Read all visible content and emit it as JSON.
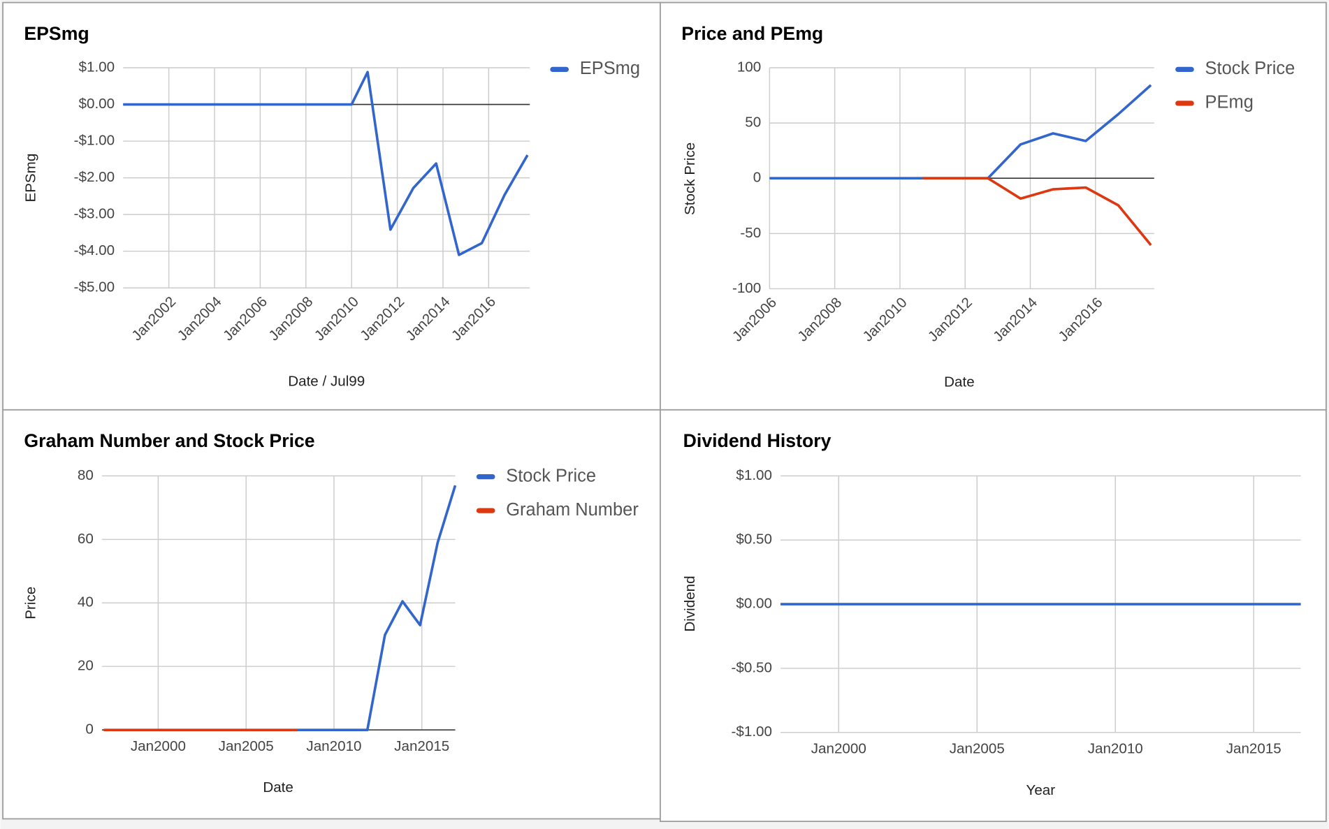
{
  "chart_data": [
    {
      "type": "line",
      "title": "EPSmg",
      "x_label": "Date / Jul99",
      "y_label": "EPSmg",
      "x": [
        2000,
        2001,
        2002,
        2003,
        2004,
        2005,
        2006,
        2007,
        2008,
        2009,
        2010,
        2010.7,
        2011.7,
        2012.7,
        2013.7,
        2014.7,
        2015.7,
        2016.7,
        2017.7
      ],
      "series": [
        {
          "name": "EPSmg",
          "color": "#3366cc",
          "values": [
            0,
            0,
            0,
            0,
            0,
            0,
            0,
            0,
            0,
            0,
            0,
            0.88,
            -3.41,
            -2.28,
            -1.61,
            -4.1,
            -3.78,
            -2.46,
            -1.38
          ]
        }
      ],
      "xlim": [
        2000,
        2017.8
      ],
      "xticks": [
        {
          "value": 2002,
          "label": "Jan2002"
        },
        {
          "value": 2004,
          "label": "Jan2004"
        },
        {
          "value": 2006,
          "label": "Jan2006"
        },
        {
          "value": 2008,
          "label": "Jan2008"
        },
        {
          "value": 2010,
          "label": "Jan2010"
        },
        {
          "value": 2012,
          "label": "Jan2012"
        },
        {
          "value": 2014,
          "label": "Jan2014"
        },
        {
          "value": 2016,
          "label": "Jan2016"
        }
      ],
      "ylim": [
        -5,
        1
      ],
      "yticks": [
        {
          "value": 1,
          "label": "$1.00"
        },
        {
          "value": 0,
          "label": "$0.00"
        },
        {
          "value": -1,
          "label": "-$1.00"
        },
        {
          "value": -2,
          "label": "-$2.00"
        },
        {
          "value": -3,
          "label": "-$3.00"
        },
        {
          "value": -4,
          "label": "-$4.00"
        },
        {
          "value": -5,
          "label": "-$5.00"
        }
      ],
      "grid": true,
      "legend": "right"
    },
    {
      "type": "line",
      "title": "Price and PEmg",
      "x_label": "Date",
      "y_label": "Stock Price",
      "x": [
        2006,
        2006.7,
        2007.7,
        2008.7,
        2009.7,
        2010.7,
        2011.7,
        2012.7,
        2013.7,
        2014.7,
        2015.7,
        2016.7,
        2017.7
      ],
      "series": [
        {
          "name": "Stock Price",
          "color": "#3366cc",
          "values": [
            0,
            0,
            0,
            0,
            0,
            0,
            0,
            0,
            30.6,
            40.6,
            33.7,
            58,
            84.3
          ]
        },
        {
          "name": "PEmg",
          "color": "#dc3912",
          "values": [
            null,
            null,
            null,
            null,
            null,
            0,
            0,
            0,
            -18.4,
            -10,
            -8.4,
            -24.5,
            -60.5
          ]
        }
      ],
      "xlim": [
        2006,
        2017.8
      ],
      "xticks": [
        {
          "value": 2006,
          "label": "Jan2006"
        },
        {
          "value": 2008,
          "label": "Jan2008"
        },
        {
          "value": 2010,
          "label": "Jan2010"
        },
        {
          "value": 2012,
          "label": "Jan2012"
        },
        {
          "value": 2014,
          "label": "Jan2014"
        },
        {
          "value": 2016,
          "label": "Jan2016"
        }
      ],
      "ylim": [
        -100,
        100
      ],
      "yticks": [
        100,
        50,
        0,
        -50,
        -100
      ],
      "grid": true,
      "legend": "right"
    },
    {
      "type": "line",
      "title": "Graham Number and Stock Price",
      "x_label": "Date",
      "y_label": "Price",
      "x": [
        1996.9,
        1997.9,
        1998.9,
        1999.9,
        2000.9,
        2001.9,
        2002.9,
        2003.9,
        2004.9,
        2005.9,
        2006.9,
        2007.9,
        2008.9,
        2009.9,
        2010.9,
        2011.9,
        2012.9,
        2013.9,
        2014.9,
        2015.9,
        2016.9
      ],
      "series": [
        {
          "name": "Stock Price",
          "color": "#3366cc",
          "values": [
            null,
            null,
            null,
            null,
            null,
            null,
            null,
            null,
            null,
            null,
            null,
            0,
            0,
            0,
            0,
            0,
            29.9,
            40.5,
            33,
            59,
            77
          ]
        },
        {
          "name": "Graham Number",
          "color": "#dc3912",
          "values": [
            0,
            0,
            0,
            0,
            0,
            0,
            0,
            0,
            0,
            0,
            0,
            0,
            null,
            null,
            null,
            null,
            null,
            null,
            null,
            null,
            null
          ]
        }
      ],
      "xlim": [
        1996.8,
        2016.9
      ],
      "xticks": [
        {
          "value": 2000,
          "label": "Jan2000"
        },
        {
          "value": 2005,
          "label": "Jan2005"
        },
        {
          "value": 2010,
          "label": "Jan2010"
        },
        {
          "value": 2015,
          "label": "Jan2015"
        }
      ],
      "ylim": [
        0,
        80
      ],
      "yticks": [
        80,
        60,
        40,
        20,
        0
      ],
      "grid": true,
      "legend": "right"
    },
    {
      "type": "line",
      "title": "Dividend History",
      "x_label": "Year",
      "y_label": "Dividend",
      "x": [
        1997.9,
        1998.9,
        1999.9,
        2000.9,
        2001.9,
        2002.9,
        2003.9,
        2004.9,
        2005.9,
        2006.9,
        2007.9,
        2008.9,
        2009.9,
        2010.9,
        2011.9,
        2012.9,
        2013.9,
        2014.9,
        2015.9,
        2016.7
      ],
      "series": [
        {
          "color": "#3366cc",
          "values": [
            0,
            0,
            0,
            0,
            0,
            0,
            0,
            0,
            0,
            0,
            0,
            0,
            0,
            0,
            0,
            0,
            0,
            0,
            0,
            0
          ]
        }
      ],
      "xlim": [
        1997.9,
        2016.7
      ],
      "xticks": [
        {
          "value": 2000,
          "label": "Jan2000"
        },
        {
          "value": 2005,
          "label": "Jan2005"
        },
        {
          "value": 2010,
          "label": "Jan2010"
        },
        {
          "value": 2015,
          "label": "Jan2015"
        }
      ],
      "ylim": [
        -1,
        1
      ],
      "yticks": [
        {
          "value": 1,
          "label": "$1.00"
        },
        {
          "value": 0.5,
          "label": "$0.50"
        },
        {
          "value": 0,
          "label": "$0.00"
        },
        {
          "value": -0.5,
          "label": "-$0.50"
        },
        {
          "value": -1,
          "label": "-$1.00"
        }
      ],
      "grid": true,
      "legend": "none"
    }
  ]
}
